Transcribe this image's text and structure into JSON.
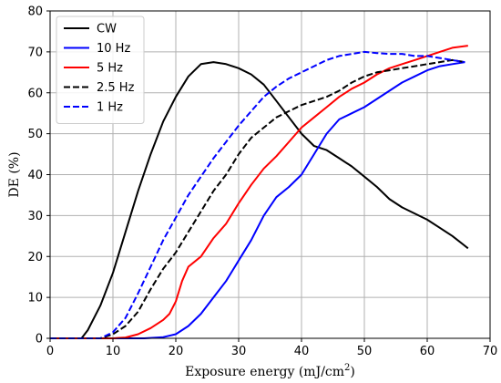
{
  "chart_data": {
    "type": "line",
    "title": "",
    "xlabel": "Exposure energy (mJ/cm",
    "xlabel_sup": "2",
    "xlabel_suffix": ")",
    "ylabel": "DE (%)",
    "xlim": [
      0,
      70
    ],
    "ylim": [
      0,
      80
    ],
    "xticks": [
      0,
      10,
      20,
      30,
      40,
      50,
      60,
      70
    ],
    "yticks": [
      0,
      10,
      20,
      30,
      40,
      50,
      60,
      70,
      80
    ],
    "grid": true,
    "legend_position": "top-left",
    "series": [
      {
        "name": "CW",
        "color": "#000000",
        "dash": "solid",
        "points": [
          [
            0,
            0
          ],
          [
            5,
            0
          ],
          [
            6,
            2
          ],
          [
            8,
            8
          ],
          [
            10,
            16
          ],
          [
            12,
            26
          ],
          [
            14,
            36
          ],
          [
            16,
            45
          ],
          [
            18,
            53
          ],
          [
            20,
            59
          ],
          [
            22,
            64
          ],
          [
            24,
            67
          ],
          [
            26,
            67.5
          ],
          [
            28,
            67
          ],
          [
            30,
            66
          ],
          [
            32,
            64.5
          ],
          [
            34,
            62
          ],
          [
            36,
            58
          ],
          [
            38,
            54
          ],
          [
            40,
            50
          ],
          [
            42,
            47
          ],
          [
            44,
            46
          ],
          [
            46,
            44
          ],
          [
            48,
            42
          ],
          [
            50,
            39.5
          ],
          [
            52,
            37
          ],
          [
            54,
            34
          ],
          [
            56,
            32
          ],
          [
            58,
            30.5
          ],
          [
            60,
            29
          ],
          [
            62,
            27
          ],
          [
            64,
            25
          ],
          [
            66.5,
            22
          ]
        ]
      },
      {
        "name": "10 Hz",
        "color": "#0000ff",
        "dash": "solid",
        "points": [
          [
            0,
            0
          ],
          [
            15,
            0
          ],
          [
            18,
            0.3
          ],
          [
            20,
            1
          ],
          [
            22,
            3
          ],
          [
            24,
            6
          ],
          [
            26,
            10
          ],
          [
            28,
            14
          ],
          [
            30,
            19
          ],
          [
            32,
            24
          ],
          [
            34,
            30
          ],
          [
            36,
            34.5
          ],
          [
            38,
            37
          ],
          [
            40,
            40
          ],
          [
            42,
            45
          ],
          [
            44,
            50
          ],
          [
            46,
            53.5
          ],
          [
            48,
            55
          ],
          [
            50,
            56.5
          ],
          [
            52,
            58.5
          ],
          [
            54,
            60.5
          ],
          [
            56,
            62.5
          ],
          [
            58,
            64
          ],
          [
            60,
            65.5
          ],
          [
            62,
            66.5
          ],
          [
            64,
            67
          ],
          [
            66,
            67.5
          ]
        ]
      },
      {
        "name": "5 Hz",
        "color": "#ff0000",
        "dash": "solid",
        "points": [
          [
            0,
            0
          ],
          [
            10,
            0
          ],
          [
            12,
            0.2
          ],
          [
            14,
            1
          ],
          [
            16,
            2.5
          ],
          [
            18,
            4.5
          ],
          [
            19,
            6
          ],
          [
            20,
            9
          ],
          [
            21,
            14
          ],
          [
            22,
            17.5
          ],
          [
            24,
            20
          ],
          [
            26,
            24.5
          ],
          [
            28,
            28
          ],
          [
            30,
            33
          ],
          [
            32,
            37.5
          ],
          [
            34,
            41.5
          ],
          [
            36,
            44.5
          ],
          [
            38,
            48
          ],
          [
            40,
            51.5
          ],
          [
            42,
            54
          ],
          [
            44,
            56.5
          ],
          [
            46,
            59
          ],
          [
            48,
            61
          ],
          [
            50,
            62.5
          ],
          [
            52,
            64.5
          ],
          [
            54,
            66
          ],
          [
            56,
            67
          ],
          [
            58,
            68
          ],
          [
            60,
            69
          ],
          [
            62,
            70
          ],
          [
            64,
            71
          ],
          [
            66.5,
            71.5
          ]
        ]
      },
      {
        "name": "2.5 Hz",
        "color": "#000000",
        "dash": "dashed",
        "points": [
          [
            0,
            0
          ],
          [
            8,
            0
          ],
          [
            10,
            1
          ],
          [
            12,
            3
          ],
          [
            14,
            6.5
          ],
          [
            16,
            12
          ],
          [
            18,
            17
          ],
          [
            20,
            21
          ],
          [
            22,
            26
          ],
          [
            24,
            31
          ],
          [
            26,
            36
          ],
          [
            28,
            40
          ],
          [
            30,
            45
          ],
          [
            32,
            49
          ],
          [
            34,
            51.5
          ],
          [
            36,
            54
          ],
          [
            38,
            55.5
          ],
          [
            40,
            57
          ],
          [
            42,
            58
          ],
          [
            44,
            59
          ],
          [
            46,
            60.5
          ],
          [
            48,
            62.5
          ],
          [
            50,
            64
          ],
          [
            52,
            65
          ],
          [
            54,
            65.5
          ],
          [
            56,
            66
          ],
          [
            58,
            66.5
          ],
          [
            60,
            67
          ],
          [
            62,
            67.5
          ],
          [
            64,
            68
          ],
          [
            66,
            67.5
          ]
        ]
      },
      {
        "name": "1 Hz",
        "color": "#0000ff",
        "dash": "dashed",
        "points": [
          [
            0,
            0
          ],
          [
            8,
            0
          ],
          [
            10,
            1.5
          ],
          [
            12,
            5
          ],
          [
            14,
            11
          ],
          [
            16,
            17.5
          ],
          [
            18,
            24
          ],
          [
            20,
            29.5
          ],
          [
            22,
            35
          ],
          [
            24,
            39.5
          ],
          [
            26,
            44
          ],
          [
            28,
            48
          ],
          [
            30,
            52
          ],
          [
            32,
            55.5
          ],
          [
            34,
            59
          ],
          [
            36,
            61.5
          ],
          [
            38,
            63.5
          ],
          [
            40,
            65
          ],
          [
            42,
            66.5
          ],
          [
            44,
            68
          ],
          [
            46,
            69
          ],
          [
            48,
            69.5
          ],
          [
            50,
            70
          ],
          [
            52,
            69.7
          ],
          [
            54,
            69.5
          ],
          [
            56,
            69.5
          ],
          [
            58,
            69
          ],
          [
            60,
            69
          ],
          [
            62,
            68.5
          ],
          [
            64,
            68
          ],
          [
            66,
            67.5
          ]
        ]
      }
    ]
  }
}
